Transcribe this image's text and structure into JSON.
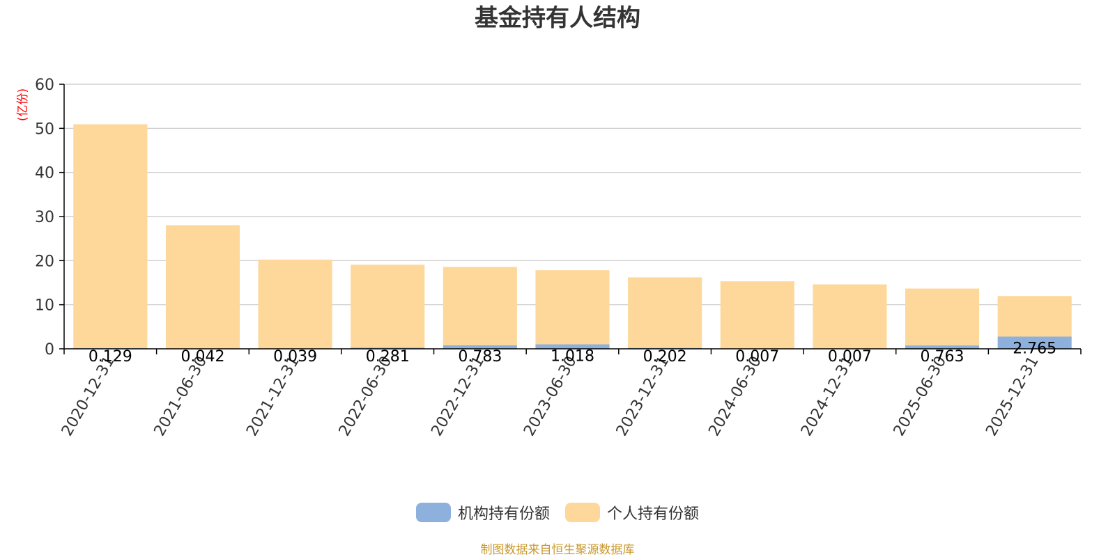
{
  "colors": {
    "institution": "#8eb0dc",
    "individual": "#fdd89a",
    "title": "#333333",
    "unit": "#ff0000",
    "source": "#c9982e",
    "grid": "#c8c8c8",
    "axis": "#000000"
  },
  "chart_data": {
    "type": "bar",
    "stacked": true,
    "title": "基金持有人结构",
    "ylabel": "(亿份)",
    "ylim": [
      0,
      60
    ],
    "yticks": [
      0,
      10,
      20,
      30,
      40,
      50,
      60
    ],
    "categories": [
      "2020-12-31",
      "2021-06-30",
      "2021-12-31",
      "2022-06-30",
      "2022-12-31",
      "2023-06-30",
      "2023-12-31",
      "2024-06-30",
      "2024-12-31",
      "2025-06-30",
      "2025-12-31"
    ],
    "series": [
      {
        "name": "机构持有份额",
        "values": [
          0.129,
          0.042,
          0.039,
          0.281,
          0.783,
          1.018,
          0.202,
          0.007,
          0.007,
          0.763,
          2.765
        ],
        "labels": [
          "0.129",
          "0.042",
          "0.039",
          "0.281",
          "0.783",
          "1.018",
          "0.202",
          "0.007",
          "0.007",
          "0.763",
          "2.765"
        ]
      },
      {
        "name": "个人持有份额",
        "values": [
          50.8,
          28.0,
          20.2,
          18.8,
          17.8,
          16.8,
          16.0,
          15.3,
          14.6,
          12.9,
          9.2
        ]
      }
    ]
  },
  "legend": {
    "institution_label": "机构持有份额",
    "individual_label": "个人持有份额"
  },
  "footer": {
    "source_text": "制图数据来自恒生聚源数据库"
  }
}
